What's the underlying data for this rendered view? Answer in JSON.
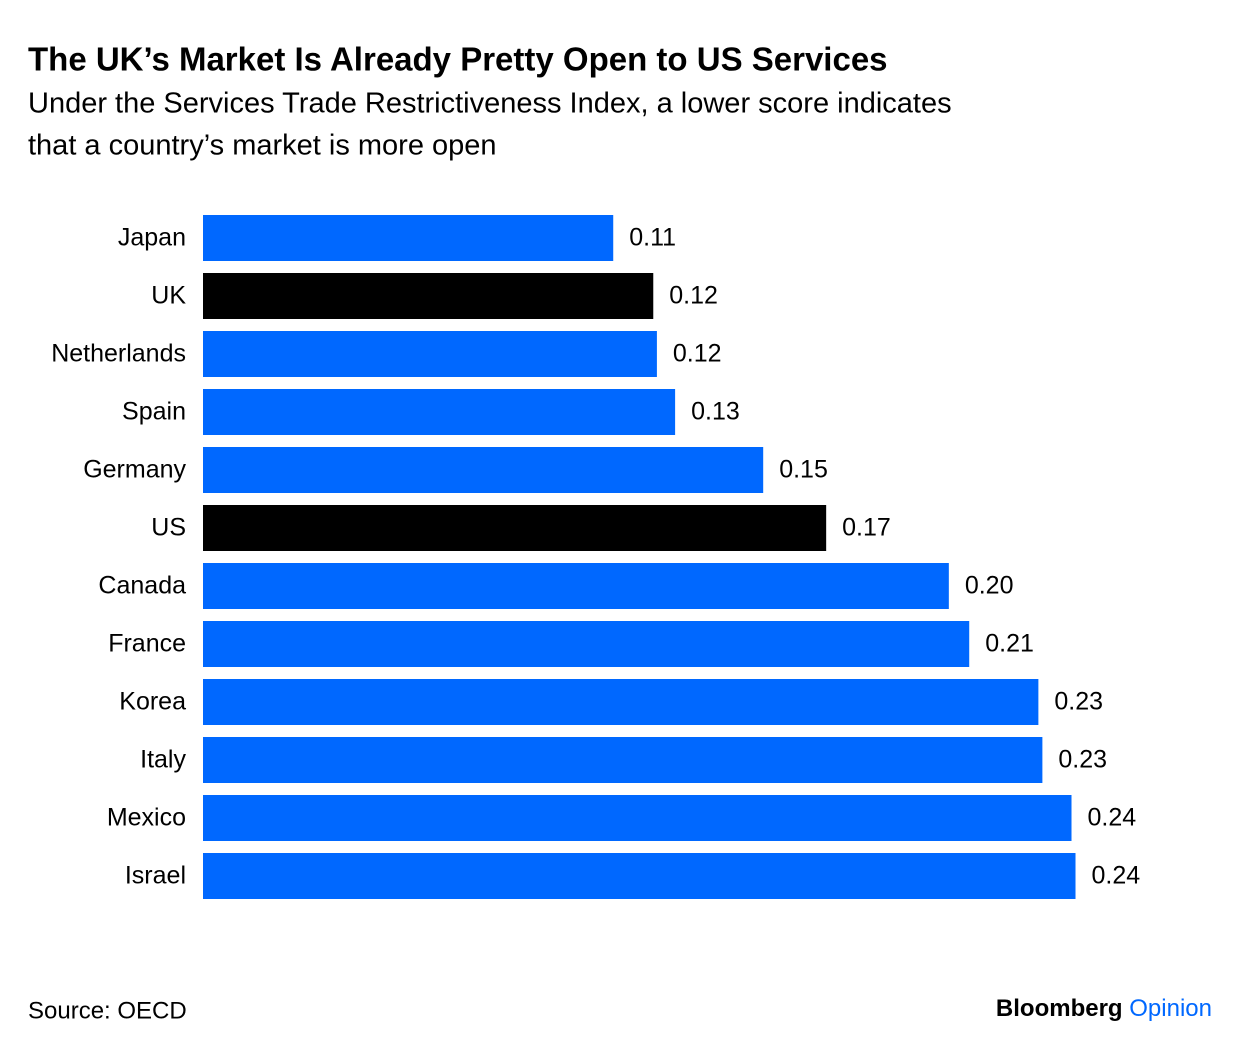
{
  "chart_data": {
    "type": "bar",
    "orientation": "horizontal",
    "title": "The UK’s Market Is Already Pretty Open to US Services",
    "subtitle": [
      "Under the Services Trade Restrictiveness Index, a lower score indicates",
      "that a country’s market is more open"
    ],
    "categories": [
      "Japan",
      "UK",
      "Netherlands",
      "Spain",
      "Germany",
      "US",
      "Canada",
      "France",
      "Korea",
      "Italy",
      "Mexico",
      "Israel"
    ],
    "values": [
      0.1127,
      0.1237,
      0.1247,
      0.1297,
      0.1539,
      0.1712,
      0.2049,
      0.2105,
      0.2295,
      0.2306,
      0.2386,
      0.2397
    ],
    "value_labels": [
      "0.11",
      "0.12",
      "0.12",
      "0.13",
      "0.15",
      "0.17",
      "0.20",
      "0.21",
      "0.23",
      "0.23",
      "0.24",
      "0.24"
    ],
    "colors": [
      "#0068ff",
      "#000000",
      "#0068ff",
      "#0068ff",
      "#0068ff",
      "#000000",
      "#0068ff",
      "#0068ff",
      "#0068ff",
      "#0068ff",
      "#0068ff",
      "#0068ff"
    ],
    "xlim": [
      0,
      0.25
    ],
    "source": "Source: OECD",
    "brand": [
      "Bloomberg",
      "Opinion"
    ]
  }
}
